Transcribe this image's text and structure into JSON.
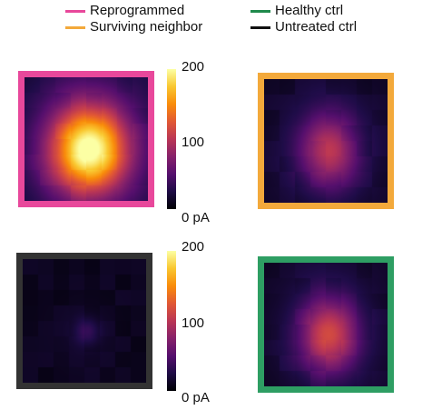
{
  "legend": [
    {
      "label": "Reprogrammed",
      "color": "#e8489b"
    },
    {
      "label": "Surviving neighbor",
      "color": "#f3a93b"
    },
    {
      "label": "Healthy ctrl",
      "color": "#1f8a4c"
    },
    {
      "label": "Untreated ctrl",
      "color": "#111111"
    }
  ],
  "colorbar": {
    "tick_labels": [
      "200",
      "100",
      "0 pA"
    ],
    "tick_labels_bottom": [
      "200",
      "100",
      "0 pA"
    ]
  },
  "chart_data": {
    "type": "heatmap",
    "colormap": "inferno",
    "value_unit": "pA",
    "vmin": 0,
    "vmax": 200,
    "colorbar_ticks": [
      0,
      100,
      200
    ],
    "panels": [
      {
        "group": "Reprogrammed",
        "frame_color": "#e8489b",
        "peak_value": 180,
        "spread": "wide",
        "position": "top-left"
      },
      {
        "group": "Surviving neighbor",
        "frame_color": "#f3a93b",
        "peak_value": 80,
        "spread": "medium",
        "position": "top-right"
      },
      {
        "group": "Untreated ctrl",
        "frame_color": "#333333",
        "peak_value": 25,
        "spread": "small",
        "position": "bottom-left"
      },
      {
        "group": "Healthy ctrl",
        "frame_color": "#2e9e63",
        "peak_value": 95,
        "spread": "medium",
        "position": "bottom-right"
      }
    ]
  }
}
